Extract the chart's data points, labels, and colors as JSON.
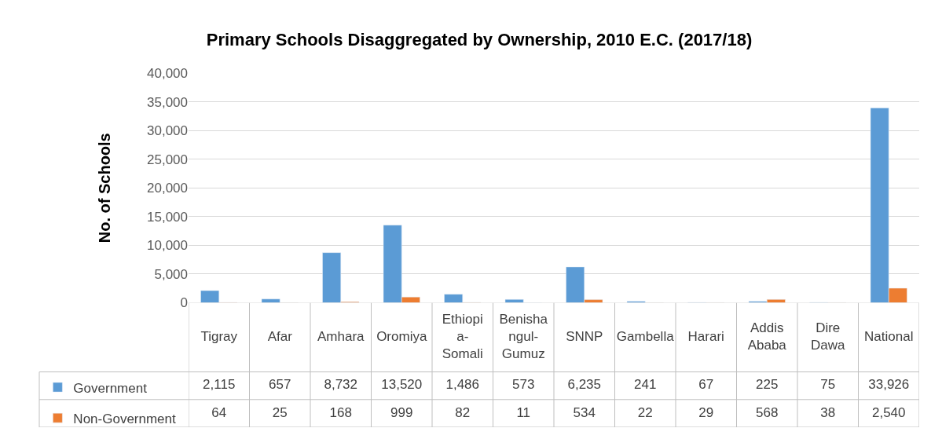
{
  "chart_data": {
    "type": "bar",
    "title": "Primary Schools Disaggregated by Ownership, 2010 E.C. (2017/18)",
    "ylabel": "No. of Schools",
    "categories": [
      "Tigray",
      "Afar",
      "Amhara",
      "Oromiya",
      "Ethiopia-Somali",
      "Benishangul-Gumuz",
      "SNNP",
      "Gambella",
      "Harari",
      "Addis Ababa",
      "Dire Dawa",
      "National"
    ],
    "series": [
      {
        "name": "Government",
        "color": "#5b9bd5",
        "values": [
          2115,
          657,
          8732,
          13520,
          1486,
          573,
          6235,
          241,
          67,
          225,
          75,
          33926
        ],
        "value_labels": [
          "2,115",
          "657",
          "8,732",
          "13,520",
          "1,486",
          "573",
          "6,235",
          "241",
          "67",
          "225",
          "75",
          "33,926"
        ]
      },
      {
        "name": "Non-Government",
        "color": "#ed7d31",
        "values": [
          64,
          25,
          168,
          999,
          82,
          11,
          534,
          22,
          29,
          568,
          38,
          2540
        ],
        "value_labels": [
          "64",
          "25",
          "168",
          "999",
          "82",
          "11",
          "534",
          "22",
          "29",
          "568",
          "38",
          "2,540"
        ]
      }
    ],
    "ylim": [
      0,
      40000
    ],
    "yticks": [
      {
        "value": 0,
        "label": "0"
      },
      {
        "value": 5000,
        "label": "5,000"
      },
      {
        "value": 10000,
        "label": "10,000"
      },
      {
        "value": 15000,
        "label": "15,000"
      },
      {
        "value": 20000,
        "label": "20,000"
      },
      {
        "value": 25000,
        "label": "25,000"
      },
      {
        "value": 30000,
        "label": "30,000"
      },
      {
        "value": 35000,
        "label": "35,000"
      },
      {
        "value": 40000,
        "label": "40,000"
      }
    ],
    "grid": "y",
    "legend": "bottom left"
  }
}
